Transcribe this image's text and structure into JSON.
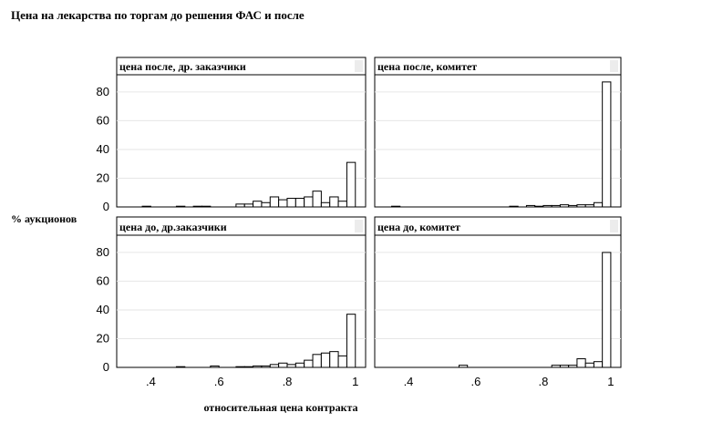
{
  "chart_data": {
    "type": "bar",
    "title": "Цена на лекарства по торгам до решения ФАС и после",
    "xlabel": "относительная цена контракта",
    "ylabel": "% аукционов",
    "x_ticks": [
      ".4",
      ".6",
      ".8",
      "1"
    ],
    "y_ticks": [
      "0",
      "20",
      "40",
      "60",
      "80"
    ],
    "xlim": [
      0.3,
      1.03
    ],
    "ylim": [
      0,
      92
    ],
    "bin_width": 0.025,
    "panels": [
      {
        "name": "цена после, др. заказчики",
        "bins": [
          {
            "x": 0.375,
            "value": 0.5
          },
          {
            "x": 0.475,
            "value": 0.5
          },
          {
            "x": 0.525,
            "value": 0.5
          },
          {
            "x": 0.55,
            "value": 0.5
          },
          {
            "x": 0.65,
            "value": 2
          },
          {
            "x": 0.675,
            "value": 2
          },
          {
            "x": 0.7,
            "value": 4
          },
          {
            "x": 0.725,
            "value": 3
          },
          {
            "x": 0.75,
            "value": 7
          },
          {
            "x": 0.775,
            "value": 5
          },
          {
            "x": 0.8,
            "value": 6
          },
          {
            "x": 0.825,
            "value": 6
          },
          {
            "x": 0.85,
            "value": 7
          },
          {
            "x": 0.875,
            "value": 11
          },
          {
            "x": 0.9,
            "value": 3
          },
          {
            "x": 0.925,
            "value": 7
          },
          {
            "x": 0.95,
            "value": 4
          },
          {
            "x": 0.975,
            "value": 31
          }
        ]
      },
      {
        "name": "цена после, комитет",
        "bins": [
          {
            "x": 0.35,
            "value": 0.5
          },
          {
            "x": 0.7,
            "value": 0.5
          },
          {
            "x": 0.75,
            "value": 1
          },
          {
            "x": 0.775,
            "value": 0.5
          },
          {
            "x": 0.8,
            "value": 1
          },
          {
            "x": 0.825,
            "value": 1
          },
          {
            "x": 0.85,
            "value": 1.5
          },
          {
            "x": 0.875,
            "value": 1
          },
          {
            "x": 0.9,
            "value": 1.5
          },
          {
            "x": 0.925,
            "value": 1.5
          },
          {
            "x": 0.95,
            "value": 3
          },
          {
            "x": 0.975,
            "value": 87
          }
        ]
      },
      {
        "name": "цена до, др.заказчики",
        "bins": [
          {
            "x": 0.475,
            "value": 0.5
          },
          {
            "x": 0.575,
            "value": 1
          },
          {
            "x": 0.65,
            "value": 0.5
          },
          {
            "x": 0.675,
            "value": 0.5
          },
          {
            "x": 0.7,
            "value": 1
          },
          {
            "x": 0.725,
            "value": 1
          },
          {
            "x": 0.75,
            "value": 2
          },
          {
            "x": 0.775,
            "value": 3
          },
          {
            "x": 0.8,
            "value": 2
          },
          {
            "x": 0.825,
            "value": 3
          },
          {
            "x": 0.85,
            "value": 5
          },
          {
            "x": 0.875,
            "value": 9
          },
          {
            "x": 0.9,
            "value": 10
          },
          {
            "x": 0.925,
            "value": 11
          },
          {
            "x": 0.95,
            "value": 8
          },
          {
            "x": 0.975,
            "value": 37
          }
        ]
      },
      {
        "name": "цена до, комитет",
        "bins": [
          {
            "x": 0.55,
            "value": 1.5
          },
          {
            "x": 0.825,
            "value": 1.5
          },
          {
            "x": 0.85,
            "value": 1.5
          },
          {
            "x": 0.875,
            "value": 1.5
          },
          {
            "x": 0.9,
            "value": 6
          },
          {
            "x": 0.925,
            "value": 3
          },
          {
            "x": 0.95,
            "value": 4
          },
          {
            "x": 0.975,
            "value": 80
          }
        ]
      }
    ]
  }
}
